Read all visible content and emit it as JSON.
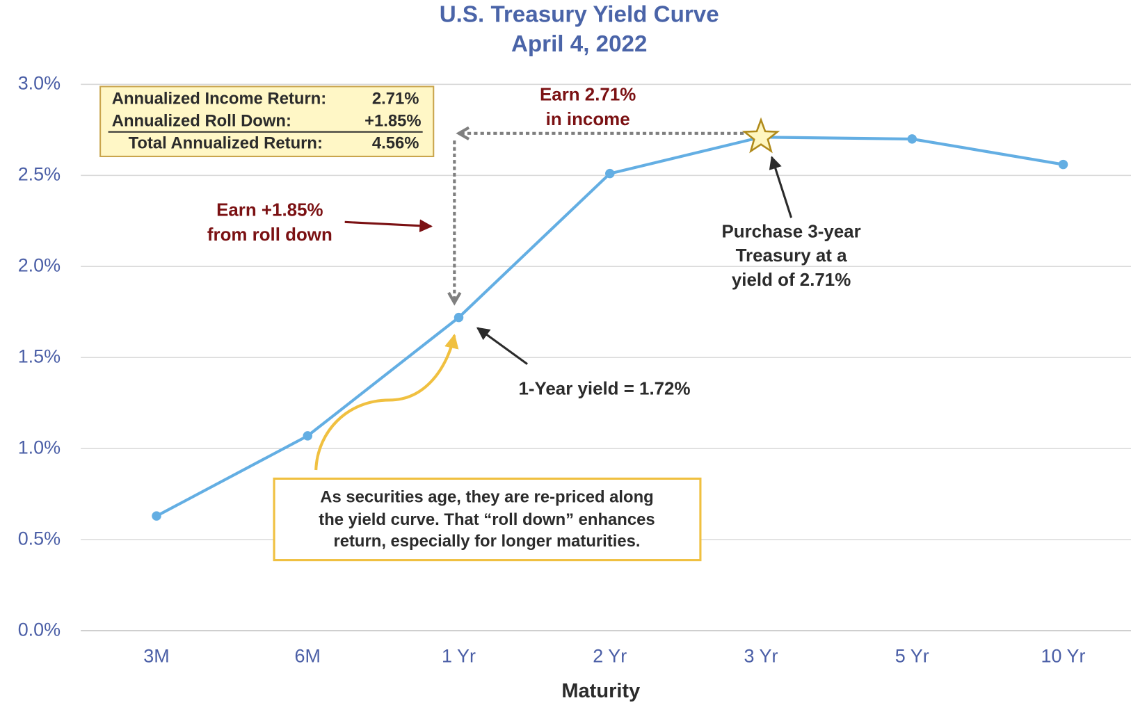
{
  "chart_data": {
    "type": "line",
    "title": "U.S. Treasury Yield Curve",
    "subtitle": "April 4, 2022",
    "x_label": "Maturity",
    "categories": [
      "3M",
      "6M",
      "1 Yr",
      "2 Yr",
      "3 Yr",
      "5 Yr",
      "10 Yr"
    ],
    "series": [
      {
        "name": "Yield",
        "color": "#63aee3",
        "values": [
          0.63,
          1.07,
          1.72,
          2.51,
          2.71,
          2.7,
          2.56
        ]
      }
    ],
    "ylim": [
      0,
      3
    ],
    "yticks": [
      {
        "value": 0,
        "label": "0.0%"
      },
      {
        "value": 0.5,
        "label": "0.5%"
      },
      {
        "value": 1,
        "label": "1.0%"
      },
      {
        "value": 1.5,
        "label": "1.5%"
      },
      {
        "value": 2,
        "label": "2.0%"
      },
      {
        "value": 2.5,
        "label": "2.5%"
      },
      {
        "value": 3,
        "label": "3.0%"
      }
    ],
    "grid": true,
    "info_box": [
      {
        "label": "Annualized Income Return:",
        "value": "2.71%"
      },
      {
        "label": "Annualized Roll Down:",
        "value": "+1.85%"
      },
      {
        "label": "Total Annualized Return:",
        "value": "4.56%"
      }
    ],
    "annotations": [
      {
        "lines": [
          "Earn 2.71%",
          "in income"
        ]
      },
      {
        "lines": [
          "Earn +1.85%",
          "from roll down"
        ]
      },
      {
        "lines": [
          "Purchase 3-year",
          "Treasury at a",
          "yield of  2.71%"
        ]
      },
      {
        "lines": [
          "1-Year yield = 1.72%"
        ]
      },
      {
        "lines": [
          "As securities age, they are re-priced along",
          "the yield curve.  That “roll down” enhances",
          "return, especially for longer maturities."
        ]
      }
    ]
  }
}
